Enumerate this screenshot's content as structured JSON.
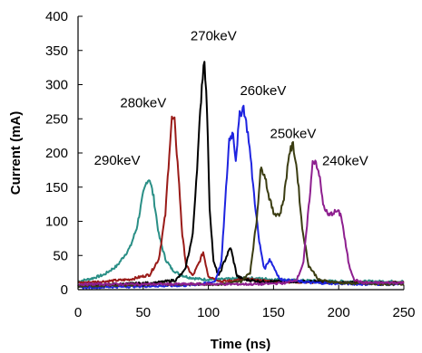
{
  "chart_data": {
    "type": "line",
    "xlabel": "Time (ns)",
    "ylabel": "Current (mA)",
    "xlim": [
      0,
      250
    ],
    "ylim": [
      0,
      400
    ],
    "xticks": [
      0,
      50,
      100,
      150,
      200,
      250
    ],
    "yticks": [
      0,
      50,
      100,
      150,
      200,
      250,
      300,
      350,
      400
    ],
    "grid": false,
    "legend": "none",
    "annotations": [
      {
        "text": "290keV",
        "x": 30,
        "y": 183
      },
      {
        "text": "280keV",
        "x": 50,
        "y": 267
      },
      {
        "text": "270keV",
        "x": 104,
        "y": 365
      },
      {
        "text": "260keV",
        "x": 142,
        "y": 285
      },
      {
        "text": "250keV",
        "x": 165,
        "y": 222
      },
      {
        "text": "240keV",
        "x": 205,
        "y": 182
      }
    ],
    "series": [
      {
        "color": "#2a8f86",
        "x": [
          0,
          10,
          20,
          30,
          40,
          45,
          50,
          53,
          55,
          58,
          62,
          67,
          72,
          78,
          85,
          95,
          110,
          130,
          160,
          200,
          250
        ],
        "y": [
          12,
          16,
          22,
          35,
          62,
          90,
          140,
          160,
          162,
          135,
          80,
          45,
          30,
          22,
          18,
          15,
          15,
          17,
          14,
          12,
          12
        ]
      },
      {
        "color": "#9a1b18",
        "x": [
          0,
          20,
          40,
          55,
          62,
          67,
          70,
          72,
          74,
          77,
          80,
          83,
          88,
          93,
          96,
          100,
          110,
          130,
          150,
          200,
          250
        ],
        "y": [
          10,
          12,
          15,
          22,
          45,
          110,
          200,
          250,
          246,
          170,
          80,
          35,
          20,
          40,
          55,
          20,
          12,
          15,
          12,
          10,
          10
        ]
      },
      {
        "color": "#000000",
        "x": [
          0,
          30,
          60,
          75,
          82,
          88,
          92,
          95,
          97,
          99,
          101,
          104,
          108,
          112,
          117,
          122,
          127,
          140,
          180,
          200,
          250
        ],
        "y": [
          5,
          8,
          10,
          14,
          28,
          80,
          200,
          300,
          340,
          260,
          120,
          40,
          20,
          40,
          62,
          20,
          15,
          12,
          12,
          10,
          10
        ]
      },
      {
        "color": "#1e24e0",
        "x": [
          0,
          50,
          80,
          95,
          105,
          110,
          113,
          116,
          119,
          121,
          124,
          127,
          131,
          135,
          139,
          143,
          147,
          155,
          180,
          220,
          250
        ],
        "y": [
          3,
          5,
          6,
          8,
          12,
          40,
          130,
          220,
          230,
          190,
          255,
          268,
          220,
          140,
          70,
          30,
          45,
          15,
          10,
          8,
          8
        ]
      },
      {
        "color": "#3b3d12",
        "x": [
          0,
          60,
          110,
          125,
          132,
          137,
          140,
          143,
          146,
          150,
          155,
          158,
          162,
          165,
          168,
          172,
          177,
          185,
          200,
          230,
          250
        ],
        "y": [
          5,
          8,
          8,
          12,
          25,
          100,
          175,
          172,
          140,
          112,
          110,
          135,
          200,
          212,
          175,
          90,
          35,
          14,
          10,
          8,
          8
        ]
      },
      {
        "color": "#8e1f8f",
        "x": [
          0,
          80,
          140,
          160,
          168,
          173,
          177,
          180,
          182,
          185,
          188,
          192,
          195,
          199,
          202,
          205,
          208,
          212,
          218,
          230,
          250
        ],
        "y": [
          8,
          8,
          8,
          10,
          15,
          40,
          120,
          185,
          190,
          170,
          125,
          108,
          112,
          115,
          108,
          70,
          35,
          15,
          10,
          10,
          10
        ]
      }
    ]
  }
}
